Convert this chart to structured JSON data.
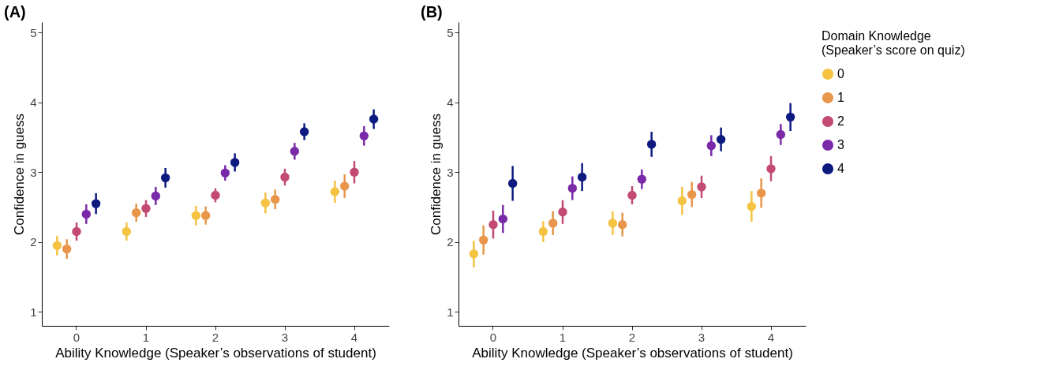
{
  "chart_data": [
    {
      "type": "scatter",
      "title": "(A)",
      "xlabel": "Ability Knowledge (Speaker’s observations of student)",
      "ylabel": "Confidence in guess",
      "categories": [
        "0",
        "1",
        "2",
        "3",
        "4"
      ],
      "ylim": [
        0.8,
        5.15
      ],
      "yticks": [
        1,
        2,
        3,
        4,
        5
      ],
      "marker": "circle",
      "series": [
        {
          "color": "#f5c342",
          "values": [
            1.95,
            2.15,
            2.38,
            2.56,
            2.72
          ],
          "errors": [
            0.14,
            0.13,
            0.14,
            0.15,
            0.16
          ]
        },
        {
          "color": "#e8964a",
          "values": [
            1.9,
            2.42,
            2.38,
            2.61,
            2.8
          ],
          "errors": [
            0.14,
            0.13,
            0.13,
            0.14,
            0.17
          ]
        },
        {
          "color": "#c24a73",
          "values": [
            2.15,
            2.48,
            2.67,
            2.93,
            3.0
          ],
          "errors": [
            0.13,
            0.12,
            0.1,
            0.12,
            0.16
          ]
        },
        {
          "color": "#7a2aa8",
          "values": [
            2.4,
            2.66,
            2.99,
            3.3,
            3.52
          ],
          "errors": [
            0.14,
            0.13,
            0.11,
            0.12,
            0.14
          ]
        },
        {
          "color": "#0d1a80",
          "values": [
            2.55,
            2.92,
            3.14,
            3.58,
            3.76
          ],
          "errors": [
            0.15,
            0.14,
            0.13,
            0.12,
            0.14
          ]
        }
      ]
    },
    {
      "type": "scatter",
      "title": "(B)",
      "xlabel": "Ability Knowledge (Speaker’s observations of student)",
      "ylabel": "Confidence in guess",
      "legend_title": "Domain Knowledge\n(Speaker’s score on quiz)",
      "categories": [
        "0",
        "1",
        "2",
        "3",
        "4"
      ],
      "ylim": [
        0.8,
        5.15
      ],
      "yticks": [
        1,
        2,
        3,
        4,
        5
      ],
      "marker": "circle",
      "legend": "right",
      "series": [
        {
          "name": "0",
          "color": "#f5c342",
          "values": [
            1.83,
            2.15,
            2.27,
            2.59,
            2.51
          ],
          "errors": [
            0.19,
            0.15,
            0.17,
            0.2,
            0.22
          ]
        },
        {
          "name": "1",
          "color": "#e8964a",
          "values": [
            2.03,
            2.27,
            2.25,
            2.68,
            2.7
          ],
          "errors": [
            0.21,
            0.17,
            0.17,
            0.18,
            0.21
          ]
        },
        {
          "name": "2",
          "color": "#c24a73",
          "values": [
            2.25,
            2.43,
            2.67,
            2.79,
            3.05
          ],
          "errors": [
            0.2,
            0.17,
            0.13,
            0.16,
            0.18
          ]
        },
        {
          "name": "3",
          "color": "#7a2aa8",
          "values": [
            2.33,
            2.77,
            2.9,
            3.38,
            3.54
          ],
          "errors": [
            0.2,
            0.17,
            0.14,
            0.15,
            0.15
          ]
        },
        {
          "name": "4",
          "color": "#0d1a80",
          "values": [
            2.84,
            2.93,
            3.4,
            3.47,
            3.79
          ],
          "errors": [
            0.25,
            0.2,
            0.18,
            0.17,
            0.2
          ]
        }
      ]
    }
  ]
}
